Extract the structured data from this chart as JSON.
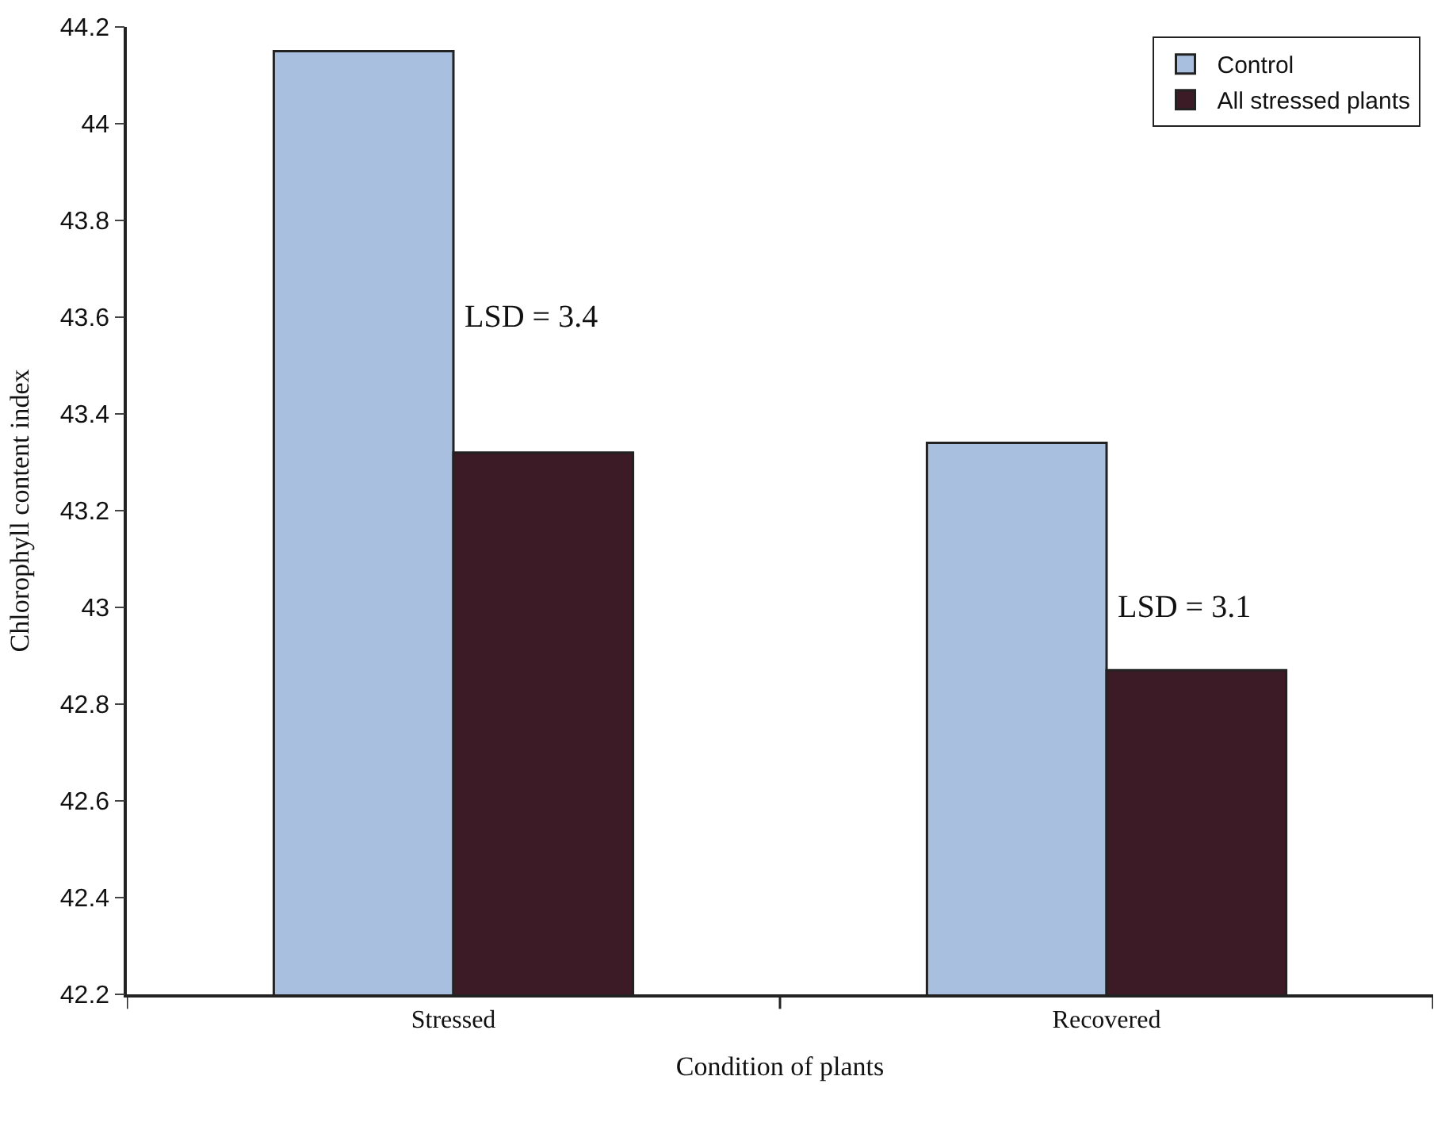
{
  "chart_data": {
    "type": "bar",
    "xlabel": "Condition of plants",
    "ylabel": "Chlorophyll content index",
    "categories": [
      "Stressed",
      "Recovered"
    ],
    "series": [
      {
        "name": "Control",
        "color": "#a9bfe0",
        "values": [
          44.15,
          43.34
        ]
      },
      {
        "name": "All stressed plants",
        "color": "#3d1b26",
        "values": [
          43.32,
          42.87
        ]
      }
    ],
    "ylim": [
      42.2,
      44.2
    ],
    "yticks": [
      42.2,
      42.4,
      42.6,
      42.8,
      43,
      43.2,
      43.4,
      43.6,
      43.8,
      44,
      44.2
    ],
    "annotations": [
      {
        "text": "LSD = 3.4",
        "x": "Stressed",
        "y": 43.6
      },
      {
        "text": "LSD = 3.1",
        "x": "Recovered",
        "y": 43.0
      }
    ],
    "legend": "top right"
  }
}
